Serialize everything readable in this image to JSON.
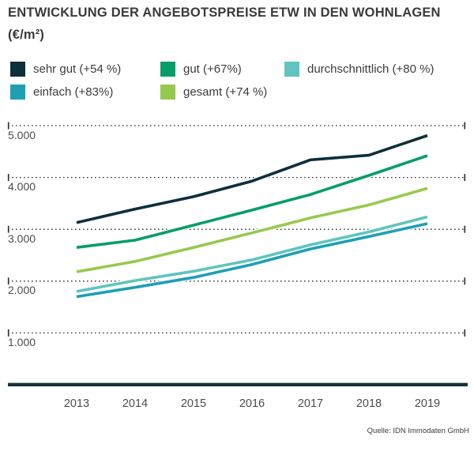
{
  "title": {
    "line1": "ENTWICKLUNG DER ANGEBOTSPREISE ETW IN DEN WOHNLAGEN",
    "line2": "(€/m²)"
  },
  "source": "Quelle: IDN Immodaten GmbH",
  "colors": {
    "axis_bar": "#14333f",
    "gridline": "#2b2b2b",
    "tick_label": "#4c4c4c",
    "title_text": "#3a3a3a",
    "legend_text": "#3c3c3c"
  },
  "chart_data": {
    "type": "line",
    "title": "ENTWICKLUNG DER ANGEBOTSPREISE ETW IN DEN WOHNLAGEN (€/m²)",
    "unit": "€/m²",
    "x_labels": [
      "2013",
      "2014",
      "2015",
      "2016",
      "2017",
      "2018",
      "2019"
    ],
    "y_tick_labels": [
      "5.000",
      "4.000",
      "3.000",
      "2.000",
      "1.000"
    ],
    "y_tick_values": [
      5000,
      4000,
      3000,
      2000,
      1000
    ],
    "ylim": [
      0,
      5300
    ],
    "grid": "dotted-horizontal",
    "legend_position": "top",
    "series": [
      {
        "name": "sehr gut",
        "legend_label": "sehr gut (+54 %)",
        "pct_change": "+54 %",
        "color": "#0E2F3C",
        "values": [
          3130,
          3390,
          3630,
          3930,
          4340,
          4430,
          4810
        ]
      },
      {
        "name": "gut",
        "legend_label": "gut (+67%)",
        "pct_change": "+67%",
        "color": "#069E68",
        "values": [
          2650,
          2790,
          3080,
          3370,
          3670,
          4040,
          4420
        ]
      },
      {
        "name": "durchschnittlich",
        "legend_label": "durchschnittlich (+80 %)",
        "pct_change": "+80 %",
        "color": "#5FC5BE",
        "values": [
          1800,
          2010,
          2190,
          2410,
          2700,
          2950,
          3240
        ]
      },
      {
        "name": "einfach",
        "legend_label": "einfach (+83%)",
        "pct_change": "+83%",
        "color": "#1F9FB4",
        "values": [
          1700,
          1880,
          2070,
          2320,
          2620,
          2860,
          3110
        ]
      },
      {
        "name": "gesamt",
        "legend_label": "gesamt (+74 %)",
        "pct_change": "+74 %",
        "color": "#97C94E",
        "values": [
          2180,
          2380,
          2650,
          2930,
          3220,
          3470,
          3790
        ]
      }
    ]
  }
}
